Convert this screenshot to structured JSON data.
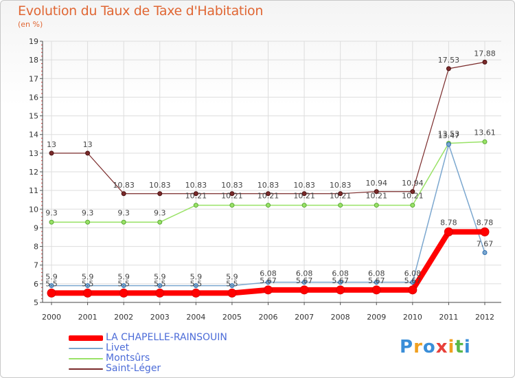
{
  "header": {
    "title": "Evolution du Taux de Taxe d'Habitation",
    "unit": "(en %)"
  },
  "chart_data": {
    "type": "line",
    "title": "Evolution du Taux de Taxe d'Habitation",
    "ylabel": "(en %)",
    "xlabel": "",
    "ylim": [
      5,
      19
    ],
    "yticks": [
      "5",
      "6",
      "7",
      "8",
      "9",
      "10",
      "11",
      "12",
      "13",
      "14",
      "15",
      "16",
      "17",
      "18",
      "19"
    ],
    "categories": [
      "2000",
      "2001",
      "2002",
      "2003",
      "2004",
      "2005",
      "2006",
      "2007",
      "2008",
      "2009",
      "2010",
      "2011",
      "2012"
    ],
    "series": [
      {
        "name": "LA CHAPELLE-RAINSOUIN",
        "color": "#ff0000",
        "values": [
          5.5,
          5.5,
          5.5,
          5.5,
          5.5,
          5.5,
          5.67,
          5.67,
          5.67,
          5.67,
          5.67,
          8.78,
          8.78
        ],
        "labels": [
          "5.5",
          "5.5",
          "5.5",
          "5.5",
          "5.5",
          "5.5",
          "5.67",
          "5.67",
          "5.67",
          "5.67",
          "5.67",
          "8.78",
          "8.78"
        ]
      },
      {
        "name": "Livet",
        "color": "#7ba7cf",
        "values": [
          5.9,
          5.9,
          5.9,
          5.9,
          5.9,
          5.9,
          6.08,
          6.08,
          6.08,
          6.08,
          6.08,
          13.47,
          7.67
        ],
        "labels": [
          "5.9",
          "5.9",
          "5.9",
          "5.9",
          "5.9",
          "5.9",
          "6.08",
          "6.08",
          "6.08",
          "6.08",
          "6.08",
          "13.47",
          "7.67"
        ]
      },
      {
        "name": "Montsûrs",
        "color": "#99e266",
        "values": [
          9.3,
          9.3,
          9.3,
          9.3,
          10.21,
          10.21,
          10.21,
          10.21,
          10.21,
          10.21,
          10.21,
          13.53,
          13.61
        ],
        "labels": [
          "9.3",
          "9.3",
          "9.3",
          "9.3",
          "10.21",
          "10.21",
          "10.21",
          "10.21",
          "10.21",
          "10.21",
          "10.21",
          "13.53",
          "13.61"
        ]
      },
      {
        "name": "Saint-Léger",
        "color": "#7a2a2a",
        "values": [
          13,
          13,
          10.83,
          10.83,
          10.83,
          10.83,
          10.83,
          10.83,
          10.83,
          10.94,
          10.94,
          17.53,
          17.88
        ],
        "labels": [
          "13",
          "13",
          "10.83",
          "10.83",
          "10.83",
          "10.83",
          "10.83",
          "10.83",
          "10.83",
          "10.94",
          "10.94",
          "17.53",
          "17.88"
        ]
      }
    ],
    "legend_position": "bottom-left"
  },
  "legend": {
    "items": [
      {
        "label": "LA CHAPELLE-RAINSOUIN",
        "color": "#ff0000"
      },
      {
        "label": "Livet",
        "color": "#7ba7cf"
      },
      {
        "label": "Montsûrs",
        "color": "#99e266"
      },
      {
        "label": "Saint-Léger",
        "color": "#7a2a2a"
      }
    ]
  },
  "logo": {
    "text": "Proxiti",
    "letters": [
      "P",
      "r",
      "o",
      "x",
      "i",
      "t",
      "i"
    ],
    "colors": [
      "#3a8ed8",
      "#f0a020",
      "#3a8ed8",
      "#e8403a",
      "#f0a020",
      "#5ab848",
      "#3a8ed8"
    ]
  }
}
